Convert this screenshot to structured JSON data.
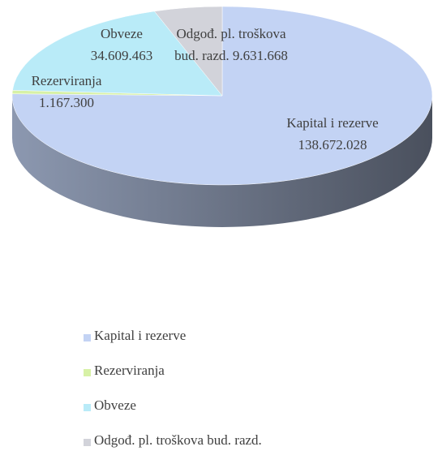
{
  "chart_data": {
    "type": "pie3d",
    "categories": [
      "Kapital i rezerve",
      "Rezerviranja",
      "Obveze",
      "Odgođ. pl. troškova bud. razd."
    ],
    "values": [
      138672028,
      1167300,
      34609463,
      9631668
    ],
    "value_labels": [
      "138.672.028",
      "1.167.300",
      "34.609.463",
      "9.631.668"
    ],
    "colors": [
      "#c3d3f4",
      "#d7f1a6",
      "#b9ebf8",
      "#d2d3da"
    ],
    "legend": "bottom"
  }
}
